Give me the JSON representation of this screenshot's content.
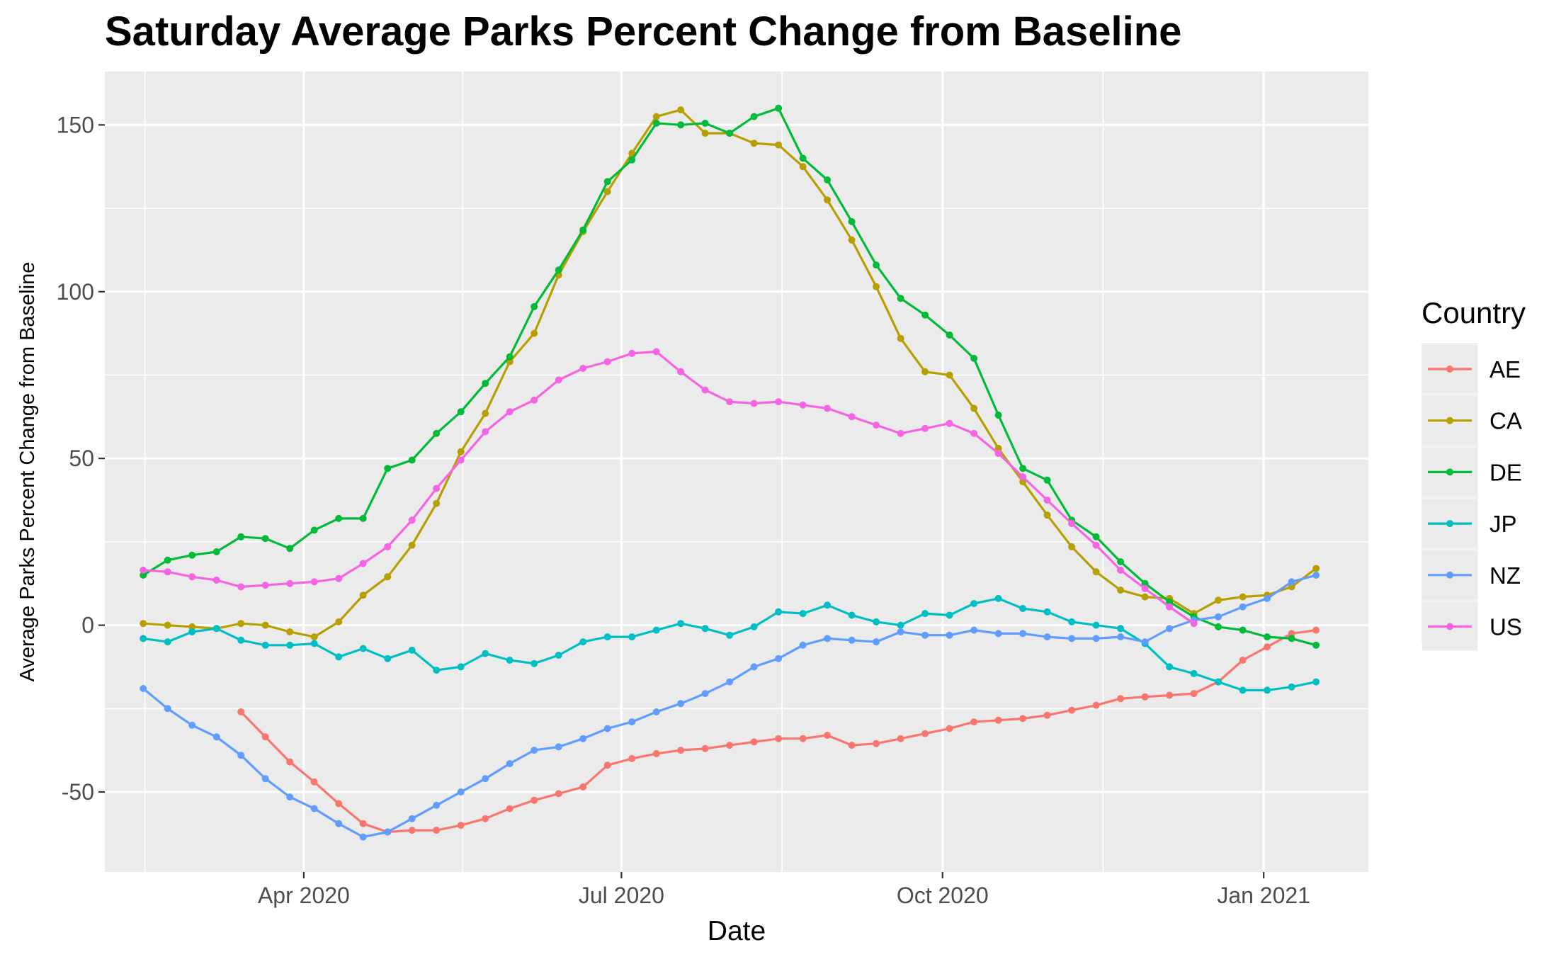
{
  "chart_data": {
    "type": "line",
    "title": "Saturday Average Parks Percent Change from Baseline",
    "xlabel": "Date",
    "ylabel": "Average Parks Percent Change from Baseline",
    "x_tick_labels": [
      {
        "date": "2020-04-01",
        "label": "Apr 2020"
      },
      {
        "date": "2020-07-01",
        "label": "Jul 2020"
      },
      {
        "date": "2020-10-01",
        "label": "Oct 2020"
      },
      {
        "date": "2021-01-01",
        "label": "Jan 2021"
      }
    ],
    "y_ticks": [
      -50,
      0,
      50,
      100,
      150
    ],
    "xlim": [
      "2020-02-04",
      "2021-01-31"
    ],
    "ylim": [
      -74,
      166
    ],
    "grid": true,
    "legend": {
      "title": "Country",
      "position": "right"
    },
    "x": [
      "2020-02-15",
      "2020-02-22",
      "2020-02-29",
      "2020-03-07",
      "2020-03-14",
      "2020-03-21",
      "2020-03-28",
      "2020-04-04",
      "2020-04-11",
      "2020-04-18",
      "2020-04-25",
      "2020-05-02",
      "2020-05-09",
      "2020-05-16",
      "2020-05-23",
      "2020-05-30",
      "2020-06-06",
      "2020-06-13",
      "2020-06-20",
      "2020-06-27",
      "2020-07-04",
      "2020-07-11",
      "2020-07-18",
      "2020-07-25",
      "2020-08-01",
      "2020-08-08",
      "2020-08-15",
      "2020-08-22",
      "2020-08-29",
      "2020-09-05",
      "2020-09-12",
      "2020-09-19",
      "2020-09-26",
      "2020-10-03",
      "2020-10-10",
      "2020-10-17",
      "2020-10-24",
      "2020-10-31",
      "2020-11-07",
      "2020-11-14",
      "2020-11-21",
      "2020-11-28",
      "2020-12-05",
      "2020-12-12",
      "2020-12-19",
      "2020-12-26",
      "2021-01-02",
      "2021-01-09",
      "2021-01-16"
    ],
    "series": [
      {
        "name": "AE",
        "color": "#F8766D",
        "values": [
          null,
          null,
          null,
          null,
          -26,
          -33.5,
          -41,
          -47,
          -53.5,
          -59.5,
          -62,
          -61.5,
          -61.5,
          -60,
          -58,
          -55,
          -52.5,
          -50.5,
          -48.5,
          -42,
          -40,
          -38.5,
          -37.5,
          -37,
          -36,
          -35,
          -34,
          -34,
          -33,
          -36,
          -35.5,
          -34,
          -32.5,
          -31,
          -29,
          -28.5,
          -28,
          -27,
          -25.5,
          -24,
          -22,
          -21.5,
          -21,
          -20.5,
          -17,
          -10.5,
          -6.5,
          -2.5,
          -1.5
        ]
      },
      {
        "name": "CA",
        "color": "#B79F00",
        "values": [
          0.5,
          0,
          -0.5,
          -1,
          0.5,
          0,
          -2,
          -3.5,
          1,
          9,
          14.5,
          24,
          36.5,
          52,
          63.5,
          79,
          87.5,
          105,
          118,
          130,
          141.5,
          152.5,
          154.5,
          147.5,
          147.5,
          144.5,
          144,
          137.5,
          127.5,
          115.5,
          101.5,
          86,
          76,
          75,
          65,
          53,
          43,
          33,
          23.5,
          16,
          10.5,
          8.5,
          8,
          3.5,
          7.5,
          8.5,
          9,
          11.5,
          17
        ]
      },
      {
        "name": "DE",
        "color": "#00BA38",
        "values": [
          15,
          19.5,
          21,
          22,
          26.5,
          26,
          23,
          28.5,
          32,
          32,
          47,
          49.5,
          57.5,
          64,
          72.5,
          80.5,
          95.5,
          106.5,
          118.5,
          133,
          139.5,
          150.5,
          150,
          150.5,
          147.5,
          152.5,
          155,
          140,
          133.5,
          121,
          108,
          98,
          93,
          87,
          80,
          63,
          47,
          43.5,
          31.5,
          26.5,
          19,
          12.5,
          7,
          2.5,
          -0.5,
          -1.5,
          -3.5,
          -4,
          -6
        ]
      },
      {
        "name": "JP",
        "color": "#00BFC4",
        "values": [
          -4,
          -5,
          -2,
          -1,
          -4.5,
          -6,
          -6,
          -5.5,
          -9.5,
          -7,
          -10,
          -7.5,
          -13.5,
          -12.5,
          -8.5,
          -10.5,
          -11.5,
          -9,
          -5,
          -3.5,
          -3.5,
          -1.5,
          0.5,
          -1,
          -3,
          -0.5,
          4,
          3.5,
          6,
          3,
          1,
          0,
          3.5,
          3,
          6.5,
          8,
          5,
          4,
          1,
          0,
          -1,
          -5.5,
          -12.5,
          -14.5,
          -17,
          -19.5,
          -19.5,
          -18.5,
          -17
        ]
      },
      {
        "name": "NZ",
        "color": "#619CFF",
        "values": [
          -19,
          -25,
          -30,
          -33.5,
          -39,
          -46,
          -51.5,
          -55,
          -59.5,
          -63.5,
          -62,
          -58,
          -54,
          -50,
          -46,
          -41.5,
          -37.5,
          -36.5,
          -34,
          -31,
          -29,
          -26,
          -23.5,
          -20.5,
          -17,
          -12.5,
          -10,
          -6,
          -4,
          -4.5,
          -5,
          -2,
          -3,
          -3,
          -1.5,
          -2.5,
          -2.5,
          -3.5,
          -4,
          -4,
          -3.5,
          -5,
          -1,
          1.5,
          2.5,
          5.5,
          8,
          13,
          15
        ]
      },
      {
        "name": "US",
        "color": "#F564E3",
        "values": [
          16.5,
          16,
          14.5,
          13.5,
          11.5,
          12,
          12.5,
          13,
          14,
          18.5,
          23.5,
          31.5,
          41,
          49.5,
          58,
          64,
          67.5,
          73.5,
          77,
          79,
          81.5,
          82,
          76,
          70.5,
          67,
          66.5,
          67,
          66,
          65,
          62.5,
          60,
          57.5,
          59,
          60.5,
          57.5,
          51.5,
          44.5,
          37.5,
          30.5,
          24,
          16.5,
          11,
          5.5,
          0.5,
          null,
          null,
          null,
          null,
          null
        ]
      }
    ]
  }
}
